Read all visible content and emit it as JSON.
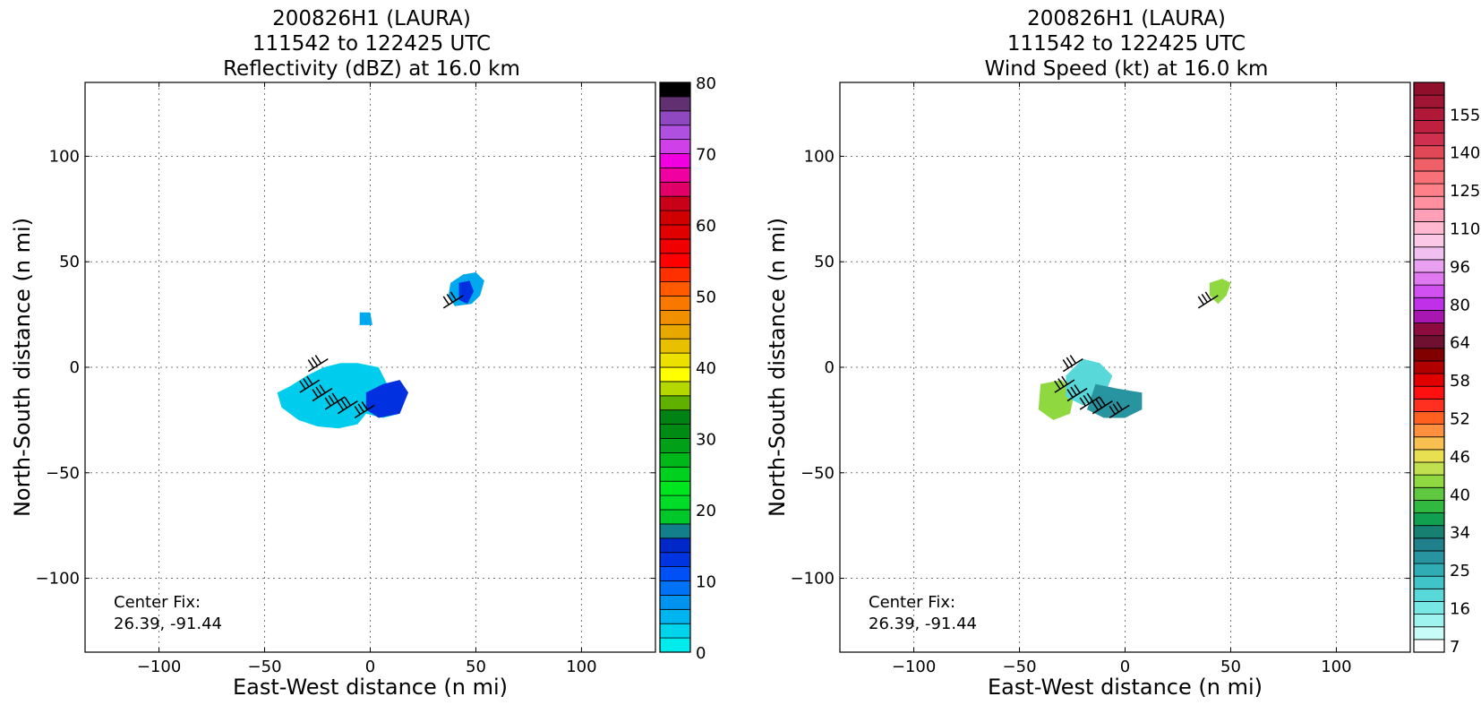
{
  "panels": [
    {
      "title_lines": [
        "200826H1 (LAURA)",
        "111542 to 122425 UTC",
        "Reflectivity (dBZ) at 16.0 km"
      ],
      "xlabel": "East-West distance (n mi)",
      "ylabel": "North-South distance (n mi)",
      "center_fix": [
        "Center Fix:",
        "26.39, -91.44"
      ],
      "colorbar_ticks": [
        "0",
        "10",
        "20",
        "30",
        "40",
        "50",
        "60",
        "70",
        "80"
      ]
    },
    {
      "title_lines": [
        "200826H1 (LAURA)",
        "111542 to 122425 UTC",
        "Wind Speed (kt) at 16.0 km"
      ],
      "xlabel": "East-West distance (n mi)",
      "ylabel": "North-South distance (n mi)",
      "center_fix": [
        "Center Fix:",
        "26.39, -91.44"
      ],
      "colorbar_ticks": [
        "7",
        "16",
        "25",
        "34",
        "40",
        "46",
        "52",
        "58",
        "64",
        "80",
        "96",
        "110",
        "125",
        "140",
        "155"
      ]
    }
  ],
  "axis_ticks": {
    "x": [
      "−100",
      "−50",
      "0",
      "50",
      "100"
    ],
    "y": [
      "100",
      "50",
      "0",
      "−50",
      "−100"
    ]
  },
  "colors": {
    "reflectivity_scale": [
      "#00ecec",
      "#00d4ec",
      "#00b4f0",
      "#0094f0",
      "#0072f6",
      "#0050f8",
      "#0034e0",
      "#0028c8",
      "#137f8a",
      "#00c82a",
      "#00dc28",
      "#00e61e",
      "#00d01e",
      "#00b81a",
      "#00a018",
      "#008c14",
      "#008214",
      "#60b000",
      "#b4d800",
      "#ffff00",
      "#ece000",
      "#e8c000",
      "#e8a800",
      "#f09000",
      "#f87800",
      "#ff5a00",
      "#ff3000",
      "#ff0000",
      "#f00000",
      "#e00000",
      "#d00000",
      "#c80018",
      "#e00068",
      "#f000a0",
      "#f000e0",
      "#d040e8",
      "#b050e0",
      "#9048c0",
      "#603070",
      "#000000"
    ],
    "wind_scale": [
      "#ffffff",
      "#c8fcf8",
      "#a0f4f0",
      "#78e8e4",
      "#58d8d8",
      "#40c4c8",
      "#30acb4",
      "#2894a0",
      "#20808c",
      "#188070",
      "#10a050",
      "#30b840",
      "#60c840",
      "#90d840",
      "#c0e050",
      "#e8e050",
      "#f8c050",
      "#ff9040",
      "#ff6020",
      "#ff3020",
      "#ff1010",
      "#e00000",
      "#b00000",
      "#800000",
      "#701030",
      "#8c0c40",
      "#a818b0",
      "#c030e8",
      "#d050f0",
      "#e078f0",
      "#eaa0f0",
      "#f2c0f0",
      "#fcc8e8",
      "#ffb8d0",
      "#ffa0b8",
      "#ff90a0",
      "#ff8088",
      "#f87078",
      "#f06068",
      "#e04858",
      "#d03050",
      "#c02040",
      "#b01838",
      "#a01434",
      "#90102c"
    ],
    "echo_light": "#00ccee",
    "echo_mid": "#00a8ee",
    "echo_dark": "#0030e0"
  },
  "chart_data": [
    {
      "type": "heatmap",
      "title": "200826H1 (LAURA) 111542 to 122425 UTC Reflectivity (dBZ) at 16.0 km",
      "xlabel": "East-West distance (n mi)",
      "ylabel": "North-South distance (n mi)",
      "xlim": [
        -135,
        135
      ],
      "ylim": [
        -135,
        135
      ],
      "xticks": [
        -100,
        -50,
        0,
        50,
        100
      ],
      "yticks": [
        -100,
        -50,
        0,
        50,
        100
      ],
      "grid": true,
      "colorbar": {
        "label": "dBZ",
        "min": 0,
        "max": 80,
        "ticks": [
          0,
          10,
          20,
          30,
          40,
          50,
          60,
          70,
          80
        ],
        "levels": 40
      },
      "echo_regions": [
        {
          "name": "main",
          "points": [
            [
              -44,
              -12
            ],
            [
              -38,
              -9
            ],
            [
              -30,
              -4
            ],
            [
              -22,
              0
            ],
            [
              -14,
              2
            ],
            [
              -6,
              2
            ],
            [
              4,
              0
            ],
            [
              8,
              -8
            ],
            [
              16,
              -10
            ],
            [
              14,
              -22
            ],
            [
              6,
              -24
            ],
            [
              -2,
              -22
            ],
            [
              -6,
              -27
            ],
            [
              -15,
              -29
            ],
            [
              -25,
              -28
            ],
            [
              -34,
              -25
            ],
            [
              -42,
              -19
            ]
          ],
          "level": "light"
        },
        {
          "name": "core",
          "points": [
            [
              -2,
              -12
            ],
            [
              6,
              -8
            ],
            [
              14,
              -6
            ],
            [
              18,
              -12
            ],
            [
              14,
              -22
            ],
            [
              4,
              -24
            ],
            [
              -2,
              -20
            ]
          ],
          "level": "dark"
        },
        {
          "name": "small",
          "points": [
            [
              -5,
              26
            ],
            [
              0,
              26
            ],
            [
              1,
              20
            ],
            [
              -5,
              20
            ]
          ],
          "level": "mid"
        },
        {
          "name": "northeast",
          "points": [
            [
              38,
              40
            ],
            [
              44,
              44
            ],
            [
              50,
              45
            ],
            [
              54,
              41
            ],
            [
              52,
              34
            ],
            [
              48,
              30
            ],
            [
              40,
              29
            ],
            [
              37,
              34
            ]
          ],
          "level": "mid"
        },
        {
          "name": "northeast_core",
          "points": [
            [
              42,
              40
            ],
            [
              47,
              41
            ],
            [
              49,
              36
            ],
            [
              46,
              30
            ],
            [
              42,
              32
            ]
          ],
          "level": "dark"
        }
      ],
      "center_fix": [
        26.39,
        -91.44
      ]
    },
    {
      "type": "heatmap",
      "title": "200826H1 (LAURA) 111542 to 122425 UTC Wind Speed (kt) at 16.0 km",
      "xlabel": "East-West distance (n mi)",
      "ylabel": "North-South distance (n mi)",
      "xlim": [
        -135,
        135
      ],
      "ylim": [
        -135,
        135
      ],
      "xticks": [
        -100,
        -50,
        0,
        50,
        100
      ],
      "yticks": [
        -100,
        -50,
        0,
        50,
        100
      ],
      "grid": true,
      "colorbar": {
        "label": "kt",
        "ticks": [
          7,
          16,
          25,
          34,
          40,
          46,
          52,
          58,
          64,
          80,
          96,
          110,
          125,
          140,
          155
        ],
        "levels": 45
      },
      "wind_regions": [
        {
          "name": "west_green",
          "points": [
            [
              -40,
              -8
            ],
            [
              -30,
              -6
            ],
            [
              -24,
              -12
            ],
            [
              -26,
              -22
            ],
            [
              -34,
              -25
            ],
            [
              -41,
              -20
            ]
          ],
          "speed_kt": 40
        },
        {
          "name": "cyan_band",
          "points": [
            [
              -28,
              -4
            ],
            [
              -20,
              4
            ],
            [
              -12,
              2
            ],
            [
              -6,
              -4
            ],
            [
              -10,
              -14
            ],
            [
              -20,
              -18
            ],
            [
              -28,
              -14
            ]
          ],
          "speed_kt": 18
        },
        {
          "name": "teal_core",
          "points": [
            [
              -14,
              -8
            ],
            [
              -4,
              -10
            ],
            [
              8,
              -12
            ],
            [
              8,
              -20
            ],
            [
              0,
              -24
            ],
            [
              -10,
              -24
            ],
            [
              -18,
              -20
            ]
          ],
          "speed_kt": 25
        },
        {
          "name": "northeast_cell",
          "points": [
            [
              40,
              40
            ],
            [
              46,
              42
            ],
            [
              50,
              40
            ],
            [
              48,
              34
            ],
            [
              44,
              30
            ],
            [
              40,
              34
            ]
          ],
          "speed_kt": 40
        }
      ],
      "center_fix": [
        26.39,
        -91.44
      ]
    }
  ]
}
